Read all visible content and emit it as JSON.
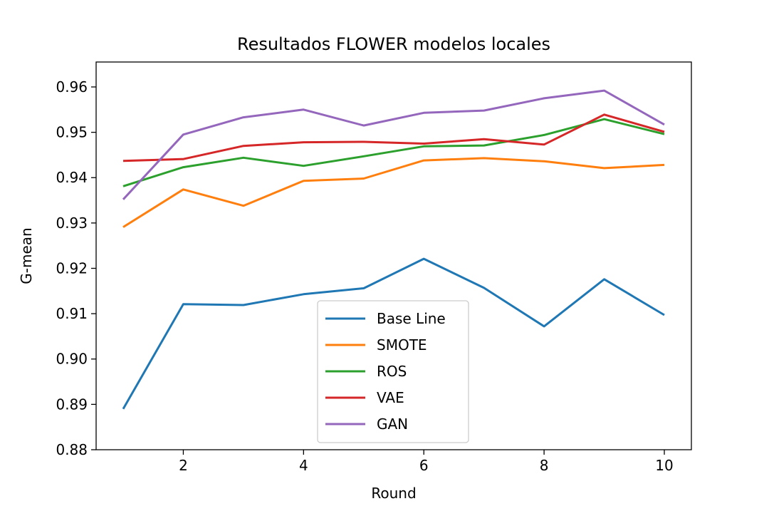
{
  "chart_data": {
    "type": "line",
    "title": "Resultados FLOWER modelos locales",
    "xlabel": "Round",
    "ylabel": "G-mean",
    "x": [
      1,
      2,
      3,
      4,
      5,
      6,
      7,
      8,
      9,
      10
    ],
    "xlim": [
      0.55,
      10.45
    ],
    "ylim": [
      0.88,
      0.9655
    ],
    "xticks": [
      2,
      4,
      6,
      8,
      10
    ],
    "yticks": [
      0.88,
      0.89,
      0.9,
      0.91,
      0.92,
      0.93,
      0.94,
      0.95,
      0.96
    ],
    "xtick_labels": [
      "2",
      "4",
      "6",
      "8",
      "10"
    ],
    "ytick_labels": [
      "0.88",
      "0.89",
      "0.90",
      "0.91",
      "0.92",
      "0.93",
      "0.94",
      "0.95",
      "0.96"
    ],
    "grid": false,
    "legend_position": "lower-center",
    "series": [
      {
        "name": "Base Line",
        "color": "#1f77b4",
        "values": [
          0.889,
          0.9121,
          0.9119,
          0.9143,
          0.9156,
          0.9221,
          0.9157,
          0.9072,
          0.9176,
          0.9097
        ]
      },
      {
        "name": "SMOTE",
        "color": "#ff7f0e",
        "values": [
          0.9291,
          0.9374,
          0.9338,
          0.9393,
          0.9398,
          0.9438,
          0.9443,
          0.9436,
          0.9421,
          0.9428
        ]
      },
      {
        "name": "ROS",
        "color": "#2ca02c",
        "values": [
          0.9381,
          0.9423,
          0.9444,
          0.9426,
          0.9447,
          0.9469,
          0.9471,
          0.9494,
          0.9529,
          0.9496
        ]
      },
      {
        "name": "VAE",
        "color": "#d62728",
        "values": [
          0.9437,
          0.9441,
          0.947,
          0.9478,
          0.9479,
          0.9475,
          0.9485,
          0.9473,
          0.9539,
          0.9501
        ]
      },
      {
        "name": "GAN",
        "color": "#9467bd",
        "values": [
          0.9352,
          0.9495,
          0.9533,
          0.955,
          0.9515,
          0.9543,
          0.9548,
          0.9575,
          0.9592,
          0.9517
        ]
      }
    ]
  }
}
